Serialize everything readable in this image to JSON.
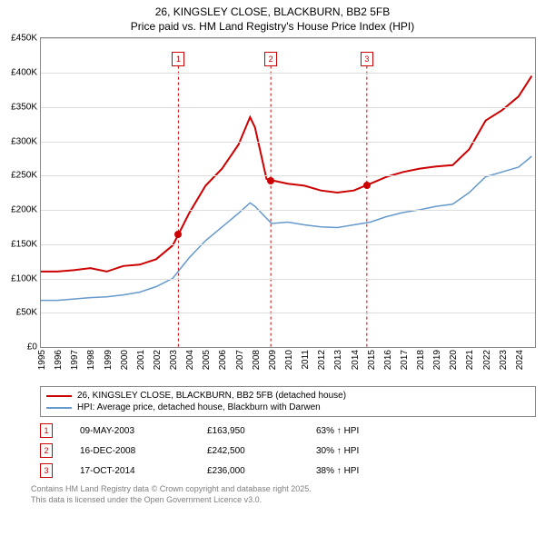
{
  "title_line1": "26, KINGSLEY CLOSE, BLACKBURN, BB2 5FB",
  "title_line2": "Price paid vs. HM Land Registry's House Price Index (HPI)",
  "chart": {
    "ylim": [
      0,
      450000
    ],
    "ytick_step": 50000,
    "yticks": [
      "£0",
      "£50K",
      "£100K",
      "£150K",
      "£200K",
      "£250K",
      "£300K",
      "£350K",
      "£400K",
      "£450K"
    ],
    "x_years": [
      1995,
      1996,
      1997,
      1998,
      1999,
      2000,
      2001,
      2002,
      2003,
      2004,
      2005,
      2006,
      2007,
      2008,
      2009,
      2010,
      2011,
      2012,
      2013,
      2014,
      2015,
      2016,
      2017,
      2018,
      2019,
      2020,
      2021,
      2022,
      2023,
      2024
    ],
    "x_min": 1995,
    "x_max": 2025,
    "series": [
      {
        "name": "26, KINGSLEY CLOSE, BLACKBURN, BB2 5FB (detached house)",
        "color": "#cc0000",
        "width": 2,
        "points": [
          [
            1995,
            110000
          ],
          [
            1996,
            110000
          ],
          [
            1997,
            112000
          ],
          [
            1998,
            115000
          ],
          [
            1999,
            110000
          ],
          [
            2000,
            118000
          ],
          [
            2001,
            120000
          ],
          [
            2002,
            128000
          ],
          [
            2003,
            148000
          ],
          [
            2003.35,
            163950
          ],
          [
            2004,
            195000
          ],
          [
            2005,
            235000
          ],
          [
            2006,
            260000
          ],
          [
            2007,
            295000
          ],
          [
            2007.7,
            335000
          ],
          [
            2008,
            320000
          ],
          [
            2008.7,
            245000
          ],
          [
            2008.96,
            242500
          ],
          [
            2009,
            243000
          ],
          [
            2010,
            238000
          ],
          [
            2011,
            235000
          ],
          [
            2012,
            228000
          ],
          [
            2013,
            225000
          ],
          [
            2014,
            228000
          ],
          [
            2014.79,
            236000
          ],
          [
            2015,
            238000
          ],
          [
            2016,
            248000
          ],
          [
            2017,
            255000
          ],
          [
            2018,
            260000
          ],
          [
            2019,
            263000
          ],
          [
            2020,
            265000
          ],
          [
            2021,
            288000
          ],
          [
            2022,
            330000
          ],
          [
            2023,
            345000
          ],
          [
            2024,
            365000
          ],
          [
            2024.8,
            395000
          ]
        ]
      },
      {
        "name": "HPI: Average price, detached house, Blackburn with Darwen",
        "color": "#6699cc",
        "width": 1.5,
        "points": [
          [
            1995,
            68000
          ],
          [
            1996,
            68000
          ],
          [
            1997,
            70000
          ],
          [
            1998,
            72000
          ],
          [
            1999,
            73000
          ],
          [
            2000,
            76000
          ],
          [
            2001,
            80000
          ],
          [
            2002,
            88000
          ],
          [
            2003,
            100000
          ],
          [
            2004,
            130000
          ],
          [
            2005,
            155000
          ],
          [
            2006,
            175000
          ],
          [
            2007,
            195000
          ],
          [
            2007.7,
            210000
          ],
          [
            2008,
            205000
          ],
          [
            2009,
            180000
          ],
          [
            2010,
            182000
          ],
          [
            2011,
            178000
          ],
          [
            2012,
            175000
          ],
          [
            2013,
            174000
          ],
          [
            2014,
            178000
          ],
          [
            2015,
            182000
          ],
          [
            2016,
            190000
          ],
          [
            2017,
            196000
          ],
          [
            2018,
            200000
          ],
          [
            2019,
            205000
          ],
          [
            2020,
            208000
          ],
          [
            2021,
            225000
          ],
          [
            2022,
            248000
          ],
          [
            2023,
            255000
          ],
          [
            2024,
            262000
          ],
          [
            2024.8,
            278000
          ]
        ]
      }
    ],
    "transaction_markers": [
      {
        "num": "1",
        "year": 2003.35,
        "top_y": 420000,
        "color": "#cc0000"
      },
      {
        "num": "2",
        "year": 2008.96,
        "top_y": 420000,
        "color": "#cc0000"
      },
      {
        "num": "3",
        "year": 2014.79,
        "top_y": 420000,
        "color": "#cc0000"
      }
    ],
    "transaction_dots": [
      {
        "year": 2003.35,
        "price": 163950,
        "color": "#cc0000"
      },
      {
        "year": 2008.96,
        "price": 242500,
        "color": "#cc0000"
      },
      {
        "year": 2014.79,
        "price": 236000,
        "color": "#cc0000"
      }
    ]
  },
  "legend": {
    "items": [
      {
        "color": "#cc0000",
        "label": "26, KINGSLEY CLOSE, BLACKBURN, BB2 5FB (detached house)"
      },
      {
        "color": "#6699cc",
        "label": "HPI: Average price, detached house, Blackburn with Darwen"
      }
    ]
  },
  "transactions": [
    {
      "num": "1",
      "color": "#cc0000",
      "date": "09-MAY-2003",
      "price": "£163,950",
      "pct": "63% ↑ HPI"
    },
    {
      "num": "2",
      "color": "#cc0000",
      "date": "16-DEC-2008",
      "price": "£242,500",
      "pct": "30% ↑ HPI"
    },
    {
      "num": "3",
      "color": "#cc0000",
      "date": "17-OCT-2014",
      "price": "£236,000",
      "pct": "38% ↑ HPI"
    }
  ],
  "footer_line1": "Contains HM Land Registry data © Crown copyright and database right 2025.",
  "footer_line2": "This data is licensed under the Open Government Licence v3.0."
}
